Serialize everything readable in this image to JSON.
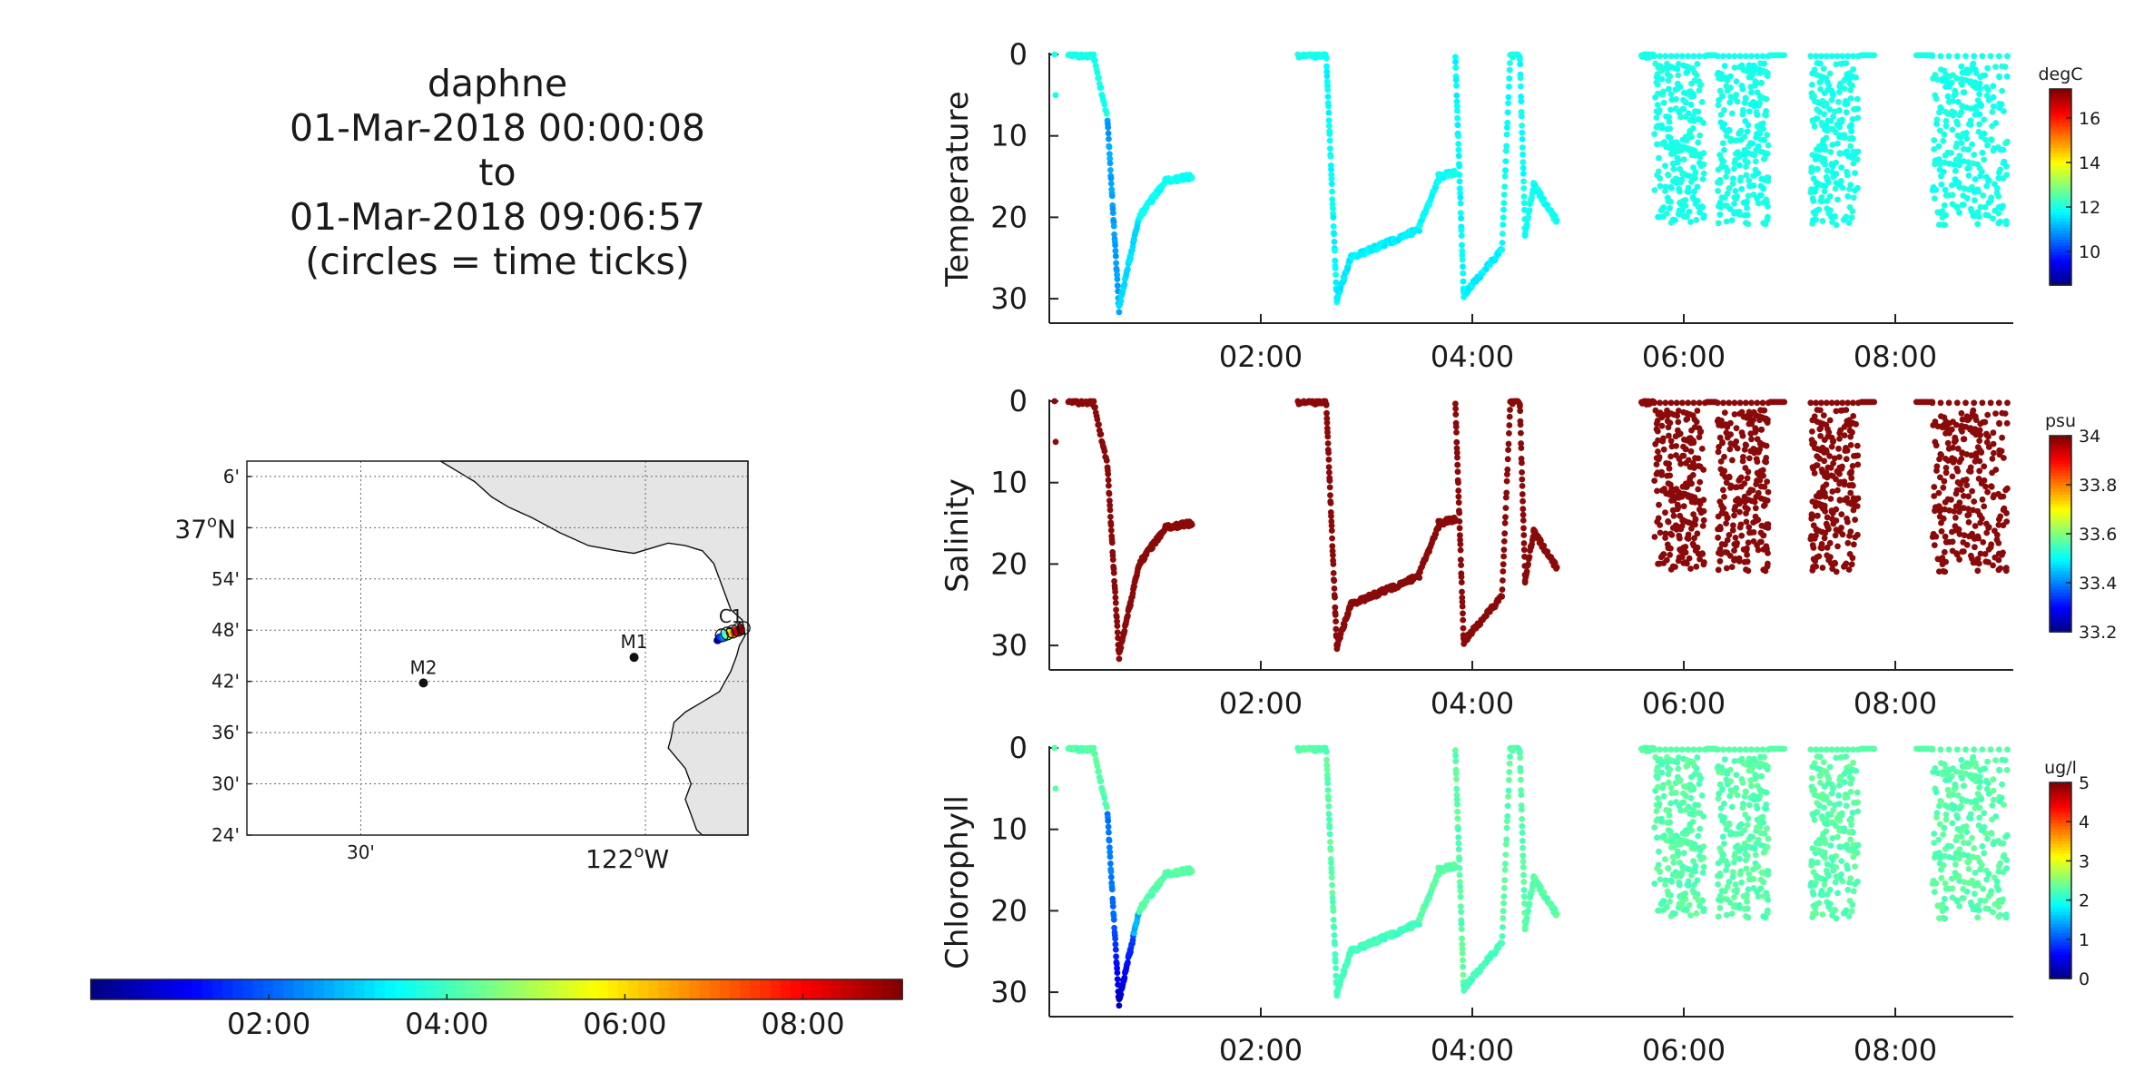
{
  "header": {
    "lines": [
      "daphne",
      "01-Mar-2018 00:00:08",
      "to",
      "01-Mar-2018 09:06:57",
      "(circles = time ticks)"
    ]
  },
  "map": {
    "lat_ticks": [
      "6'",
      "37oN",
      "54'",
      "48'",
      "42'",
      "36'",
      "30'",
      "24'"
    ],
    "lon_ticks": [
      "30'",
      "122oW"
    ],
    "lat_tick_values": [
      37.1,
      37.0,
      36.9,
      36.8,
      36.7,
      36.6,
      36.5,
      36.4
    ],
    "lon_tick_values": [
      -122.5,
      -122.0
    ],
    "stations": [
      {
        "name": "M2",
        "lat": 36.697,
        "lon": -122.39
      },
      {
        "name": "M1",
        "lat": 36.747,
        "lon": -122.02
      },
      {
        "name": "C1",
        "lat": 36.797,
        "lon": -121.85
      }
    ]
  },
  "time_colorbar": {
    "tick_labels": [
      "02:00",
      "04:00",
      "06:00",
      "08:00"
    ],
    "tick_values_hours": [
      2,
      4,
      6,
      8
    ],
    "range_hours": [
      0,
      9.116
    ]
  },
  "chart_data": [
    {
      "type": "scatter",
      "ylabel": "Temperature",
      "y_ticks": [
        0,
        10,
        20,
        30
      ],
      "ylim": [
        33,
        0
      ],
      "x_tick_labels": [
        "02:00",
        "04:00",
        "06:00",
        "08:00"
      ],
      "x_tick_values_hours": [
        2,
        4,
        6,
        8
      ],
      "xlim_hours": [
        0,
        9.116
      ],
      "colorbar": {
        "unit": "degC",
        "ticks": [
          "16",
          "14",
          "12",
          "10"
        ],
        "tick_values": [
          16,
          14,
          12,
          10
        ],
        "range": [
          8.5,
          17.3
        ]
      },
      "x": "time (hours after 00:00:08)",
      "y": "depth",
      "color": "temperature"
    },
    {
      "type": "scatter",
      "ylabel": "Salinity",
      "y_ticks": [
        0,
        10,
        20,
        30
      ],
      "ylim": [
        33,
        0
      ],
      "x_tick_labels": [
        "02:00",
        "04:00",
        "06:00",
        "08:00"
      ],
      "x_tick_values_hours": [
        2,
        4,
        6,
        8
      ],
      "xlim_hours": [
        0,
        9.116
      ],
      "colorbar": {
        "unit": "psu",
        "ticks": [
          "34",
          "33.8",
          "33.6",
          "33.4",
          "33.2"
        ],
        "tick_values": [
          34,
          33.8,
          33.6,
          33.4,
          33.2
        ],
        "range": [
          33.2,
          34
        ]
      },
      "x": "time (hours after 00:00:08)",
      "y": "depth",
      "color": "salinity"
    },
    {
      "type": "scatter",
      "ylabel": "Chlorophyll",
      "y_ticks": [
        0,
        10,
        20,
        30
      ],
      "ylim": [
        33,
        0
      ],
      "x_tick_labels": [
        "02:00",
        "04:00",
        "06:00",
        "08:00"
      ],
      "x_tick_values_hours": [
        2,
        4,
        6,
        8
      ],
      "xlim_hours": [
        0,
        9.116
      ],
      "colorbar": {
        "unit": "ug/l",
        "ticks": [
          "5",
          "4",
          "3",
          "2",
          "1",
          "0"
        ],
        "tick_values": [
          5,
          4,
          3,
          2,
          1,
          0
        ],
        "range": [
          0,
          5
        ]
      },
      "x": "time (hours after 00:00:08)",
      "y": "depth",
      "color": "chlorophyll"
    }
  ],
  "profile_segments": [
    {
      "kind": "pts",
      "pts": [
        [
          0.05,
          0
        ],
        [
          0.06,
          5
        ]
      ],
      "t": 12.0,
      "s": 33.8,
      "c": 2.3
    },
    {
      "kind": "line",
      "t0": 0.18,
      "t1": 0.42,
      "d0": 0.1,
      "d1": 0.1,
      "n": 28,
      "t": 12.0,
      "s": 33.8,
      "c": 2.3
    },
    {
      "kind": "line",
      "t0": 0.42,
      "t1": 0.55,
      "d0": 0.2,
      "d1": 8.0,
      "n": 20,
      "t": 12.0,
      "s": 33.9,
      "c": 2.3
    },
    {
      "kind": "line",
      "t0": 0.55,
      "t1": 0.66,
      "d0": 8.0,
      "d1": 31.5,
      "n": 40,
      "t": 11.0,
      "s": 33.9,
      "c": 1.2
    },
    {
      "kind": "line",
      "t0": 0.66,
      "t1": 0.85,
      "d0": 31.0,
      "d1": 20.0,
      "n": 45,
      "t": 11.5,
      "s": 33.9,
      "c": 1.5
    },
    {
      "kind": "line",
      "t0": 0.85,
      "t1": 1.1,
      "d0": 20.0,
      "d1": 15.5,
      "n": 45,
      "t": 11.9,
      "s": 33.9,
      "c": 2.3
    },
    {
      "kind": "line",
      "t0": 1.1,
      "t1": 1.35,
      "d0": 15.5,
      "d1": 15.0,
      "n": 40,
      "t": 11.9,
      "s": 33.9,
      "c": 2.3
    },
    {
      "kind": "line",
      "t0": 2.35,
      "t1": 2.62,
      "d0": 0.1,
      "d1": 0.1,
      "n": 30,
      "t": 12.0,
      "s": 33.8,
      "c": 2.3
    },
    {
      "kind": "line",
      "t0": 2.62,
      "t1": 2.72,
      "d0": 0.5,
      "d1": 30.5,
      "n": 45,
      "t": 11.8,
      "s": 33.9,
      "c": 2.3
    },
    {
      "kind": "line",
      "t0": 2.72,
      "t1": 2.85,
      "d0": 30.0,
      "d1": 25.0,
      "n": 30,
      "t": 11.6,
      "s": 33.9,
      "c": 2.1
    },
    {
      "kind": "line",
      "t0": 2.85,
      "t1": 3.5,
      "d0": 25.0,
      "d1": 21.5,
      "n": 90,
      "t": 11.7,
      "s": 33.9,
      "c": 2.2
    },
    {
      "kind": "line",
      "t0": 3.5,
      "t1": 3.68,
      "d0": 21.0,
      "d1": 15.5,
      "n": 30,
      "t": 11.8,
      "s": 33.9,
      "c": 2.3
    },
    {
      "kind": "line",
      "t0": 3.68,
      "t1": 3.84,
      "d0": 15.0,
      "d1": 14.5,
      "n": 30,
      "t": 11.9,
      "s": 33.9,
      "c": 2.3
    },
    {
      "kind": "line",
      "t0": 3.84,
      "t1": 3.92,
      "d0": 0.3,
      "d1": 30.0,
      "n": 40,
      "t": 11.8,
      "s": 33.9,
      "c": 2.3
    },
    {
      "kind": "line",
      "t0": 3.92,
      "t1": 4.28,
      "d0": 29.5,
      "d1": 24.0,
      "n": 45,
      "t": 11.7,
      "s": 33.9,
      "c": 2.2
    },
    {
      "kind": "line",
      "t0": 4.28,
      "t1": 4.36,
      "d0": 24.0,
      "d1": 0.2,
      "n": 25,
      "t": 11.9,
      "s": 33.9,
      "c": 2.3
    },
    {
      "kind": "line",
      "t0": 4.36,
      "t1": 4.45,
      "d0": 0.1,
      "d1": 0.1,
      "n": 10,
      "t": 12.0,
      "s": 33.8,
      "c": 2.3
    },
    {
      "kind": "line",
      "t0": 4.45,
      "t1": 4.5,
      "d0": 0.5,
      "d1": 22.0,
      "n": 25,
      "t": 11.9,
      "s": 33.9,
      "c": 2.3
    },
    {
      "kind": "line",
      "t0": 4.5,
      "t1": 4.58,
      "d0": 22.0,
      "d1": 16.0,
      "n": 15,
      "t": 11.9,
      "s": 33.9,
      "c": 2.3
    },
    {
      "kind": "line",
      "t0": 4.58,
      "t1": 4.8,
      "d0": 16.0,
      "d1": 20.5,
      "n": 40,
      "t": 11.9,
      "s": 33.9,
      "c": 2.3
    },
    {
      "kind": "line",
      "t0": 5.6,
      "t1": 5.72,
      "d0": 0.1,
      "d1": 0.1,
      "n": 16,
      "t": 12.0,
      "s": 33.8,
      "c": 2.3
    }
  ],
  "yoyo_blocks": [
    {
      "t0": 5.72,
      "t1": 6.2,
      "n": 230
    },
    {
      "t0": 6.32,
      "t1": 6.8,
      "n": 230
    },
    {
      "t0": 7.2,
      "t1": 7.65,
      "n": 220
    },
    {
      "t0": 8.35,
      "t1": 9.06,
      "n": 260
    }
  ],
  "yoyo_depth_range": [
    1,
    21
  ],
  "yoyo_color": {
    "t": 12.0,
    "s": 33.8,
    "c": 2.3
  },
  "surface_gaps": [
    [
      6.22,
      6.3
    ],
    [
      6.82,
      6.95
    ],
    [
      7.68,
      7.8
    ],
    [
      8.2,
      8.35
    ]
  ]
}
